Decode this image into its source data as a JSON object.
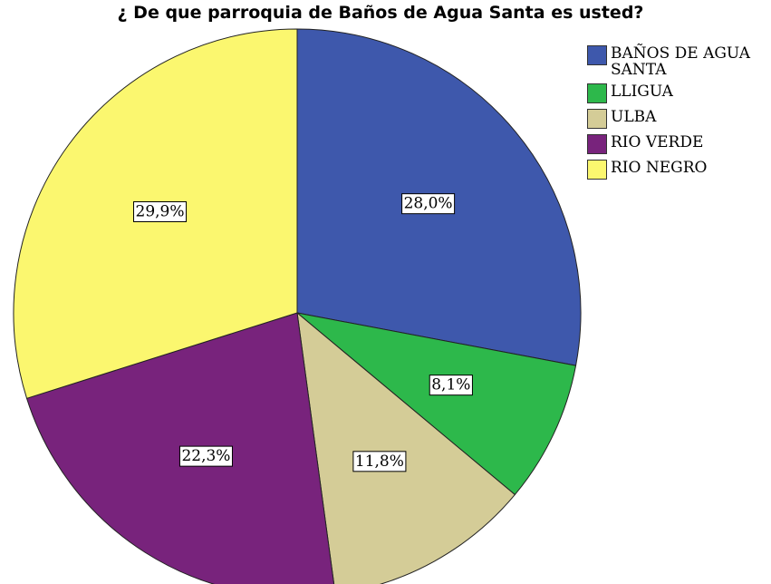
{
  "chart_data": {
    "type": "pie",
    "title": "¿ De que parroquia de Baños de Agua Santa es usted?",
    "categories": [
      "BAÑOS DE AGUA SANTA",
      "LLIGUA",
      "ULBA",
      "RIO VERDE",
      "RIO NEGRO"
    ],
    "values": [
      28.0,
      8.1,
      11.8,
      22.3,
      29.9
    ],
    "value_labels": [
      "28,0%",
      "8,1%",
      "11,8%",
      "22,3%",
      "29,9%"
    ],
    "colors": [
      "#3e58ac",
      "#2db84b",
      "#d4cc97",
      "#78237c",
      "#fbf76f"
    ],
    "legend": "upper right"
  }
}
